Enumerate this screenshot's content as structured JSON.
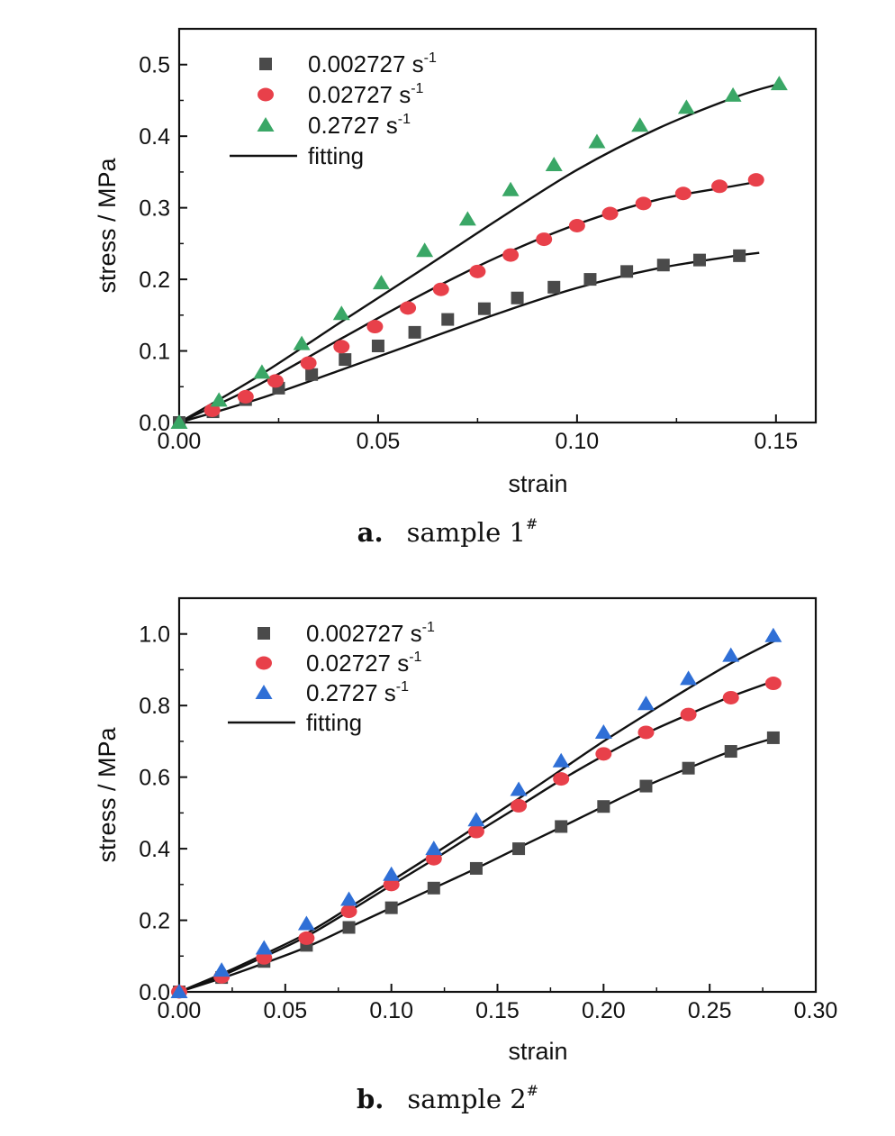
{
  "chart_data": [
    {
      "type": "scatter",
      "xlabel": "strain",
      "ylabel": "stress / MPa",
      "xlim": [
        0,
        0.16
      ],
      "ylim": [
        0,
        0.55
      ],
      "xticks": [
        0.0,
        0.05,
        0.1,
        0.15
      ],
      "xtick_labels": [
        "0.00",
        "0.05",
        "0.10",
        "0.15"
      ],
      "yticks": [
        0.0,
        0.1,
        0.2,
        0.3,
        0.4,
        0.5
      ],
      "ytick_labels": [
        "0.0",
        "0.1",
        "0.2",
        "0.3",
        "0.4",
        "0.5"
      ],
      "legend_position": "top-left",
      "grid": false,
      "caption": {
        "letter": "a.",
        "text": "sample 1",
        "mark": "#"
      },
      "series": [
        {
          "name": "0.002727 s",
          "sup": "-1",
          "marker": "square",
          "color": "#4a4a4a",
          "x": [
            0,
            0.0085,
            0.0167,
            0.025,
            0.0333,
            0.0417,
            0.05,
            0.0592,
            0.0675,
            0.0767,
            0.085,
            0.0942,
            0.1033,
            0.1125,
            0.1217,
            0.1308,
            0.1408
          ],
          "y": [
            0,
            0.015,
            0.032,
            0.048,
            0.067,
            0.088,
            0.107,
            0.126,
            0.144,
            0.159,
            0.174,
            0.189,
            0.2,
            0.211,
            0.22,
            0.227,
            0.233
          ]
        },
        {
          "name": "0.02727 s",
          "sup": "-1",
          "marker": "circle",
          "color": "#e8404a",
          "x": [
            0.0083,
            0.0167,
            0.0242,
            0.0325,
            0.0408,
            0.0492,
            0.0575,
            0.0658,
            0.075,
            0.0833,
            0.0917,
            0.1,
            0.1083,
            0.1167,
            0.1267,
            0.1358,
            0.145
          ],
          "y": [
            0.017,
            0.036,
            0.058,
            0.083,
            0.106,
            0.134,
            0.16,
            0.186,
            0.211,
            0.234,
            0.256,
            0.275,
            0.292,
            0.306,
            0.32,
            0.33,
            0.339
          ]
        },
        {
          "name": "0.2727 s",
          "sup": "-1",
          "marker": "triangle",
          "color": "#3aa766",
          "x": [
            0,
            0.01,
            0.0208,
            0.0308,
            0.0408,
            0.0508,
            0.0617,
            0.0725,
            0.0833,
            0.0942,
            0.105,
            0.1158,
            0.1275,
            0.1392,
            0.1508
          ],
          "y": [
            0,
            0.031,
            0.07,
            0.11,
            0.152,
            0.195,
            0.24,
            0.284,
            0.325,
            0.36,
            0.392,
            0.415,
            0.44,
            0.457,
            0.473
          ]
        },
        {
          "name": "fitting",
          "marker": "line",
          "color": "#111111",
          "curves": [
            {
              "x": [
                0,
                0.02,
                0.04,
                0.06,
                0.08,
                0.1,
                0.12,
                0.14,
                0.1458
              ],
              "y": [
                0,
                0.033,
                0.072,
                0.112,
                0.152,
                0.188,
                0.215,
                0.233,
                0.237
              ]
            },
            {
              "x": [
                0,
                0.02,
                0.04,
                0.06,
                0.08,
                0.1,
                0.12,
                0.14,
                0.1458
              ],
              "y": [
                0,
                0.053,
                0.115,
                0.176,
                0.231,
                0.277,
                0.311,
                0.331,
                0.337
              ]
            },
            {
              "x": [
                0,
                0.02,
                0.04,
                0.06,
                0.08,
                0.1,
                0.12,
                0.14,
                0.1508
              ],
              "y": [
                0,
                0.065,
                0.138,
                0.21,
                0.283,
                0.353,
                0.41,
                0.455,
                0.473
              ]
            }
          ]
        }
      ]
    },
    {
      "type": "scatter",
      "xlabel": "strain",
      "ylabel": "stress / MPa",
      "xlim": [
        0,
        0.3
      ],
      "ylim": [
        0,
        1.1
      ],
      "xticks": [
        0.0,
        0.05,
        0.1,
        0.15,
        0.2,
        0.25,
        0.3
      ],
      "xtick_labels": [
        "0.00",
        "0.05",
        "0.10",
        "0.15",
        "0.20",
        "0.25",
        "0.30"
      ],
      "yticks": [
        0.0,
        0.2,
        0.4,
        0.6,
        0.8,
        1.0
      ],
      "ytick_labels": [
        "0.0",
        "0.2",
        "0.4",
        "0.6",
        "0.8",
        "1.0"
      ],
      "legend_position": "top-left",
      "grid": false,
      "caption": {
        "letter": "b.",
        "text": "sample 2",
        "mark": "#"
      },
      "series": [
        {
          "name": "0.002727 s",
          "sup": "-1",
          "marker": "square",
          "color": "#4a4a4a",
          "x": [
            0,
            0.02,
            0.04,
            0.06,
            0.08,
            0.1,
            0.12,
            0.14,
            0.16,
            0.18,
            0.2,
            0.22,
            0.24,
            0.26,
            0.28
          ],
          "y": [
            0,
            0.04,
            0.085,
            0.13,
            0.18,
            0.235,
            0.29,
            0.345,
            0.4,
            0.462,
            0.518,
            0.575,
            0.625,
            0.672,
            0.71
          ]
        },
        {
          "name": "0.02727 s",
          "sup": "-1",
          "marker": "circle",
          "color": "#e8404a",
          "x": [
            0,
            0.02,
            0.04,
            0.06,
            0.08,
            0.1,
            0.12,
            0.14,
            0.16,
            0.18,
            0.2,
            0.22,
            0.24,
            0.26,
            0.28
          ],
          "y": [
            0,
            0.042,
            0.095,
            0.15,
            0.225,
            0.3,
            0.372,
            0.448,
            0.52,
            0.595,
            0.665,
            0.725,
            0.775,
            0.822,
            0.862
          ]
        },
        {
          "name": "0.2727 s",
          "sup": "-1",
          "marker": "triangle",
          "color": "#2f6fd6",
          "x": [
            0,
            0.02,
            0.04,
            0.06,
            0.08,
            0.1,
            0.12,
            0.14,
            0.16,
            0.18,
            0.2,
            0.22,
            0.24,
            0.26,
            0.28
          ],
          "y": [
            0,
            0.06,
            0.122,
            0.19,
            0.258,
            0.328,
            0.4,
            0.48,
            0.565,
            0.645,
            0.725,
            0.805,
            0.875,
            0.94,
            0.995
          ]
        },
        {
          "name": "fitting",
          "marker": "line",
          "color": "#111111",
          "curves": [
            {
              "x": [
                0,
                0.02,
                0.04,
                0.06,
                0.08,
                0.1,
                0.12,
                0.14,
                0.16,
                0.18,
                0.2,
                0.22,
                0.24,
                0.26,
                0.282
              ],
              "y": [
                0,
                0.038,
                0.08,
                0.125,
                0.18,
                0.235,
                0.29,
                0.345,
                0.403,
                0.46,
                0.518,
                0.575,
                0.625,
                0.672,
                0.712
              ]
            },
            {
              "x": [
                0,
                0.02,
                0.04,
                0.06,
                0.08,
                0.1,
                0.12,
                0.14,
                0.16,
                0.18,
                0.2,
                0.22,
                0.24,
                0.26,
                0.282
              ],
              "y": [
                0,
                0.045,
                0.098,
                0.155,
                0.225,
                0.298,
                0.37,
                0.445,
                0.518,
                0.592,
                0.66,
                0.722,
                0.775,
                0.825,
                0.872
              ]
            },
            {
              "x": [
                0,
                0.02,
                0.04,
                0.06,
                0.08,
                0.1,
                0.12,
                0.14,
                0.16,
                0.18,
                0.2,
                0.22,
                0.24,
                0.26,
                0.282
              ],
              "y": [
                0,
                0.05,
                0.105,
                0.163,
                0.235,
                0.31,
                0.385,
                0.462,
                0.54,
                0.62,
                0.7,
                0.775,
                0.848,
                0.918,
                0.985
              ]
            }
          ]
        }
      ]
    }
  ]
}
